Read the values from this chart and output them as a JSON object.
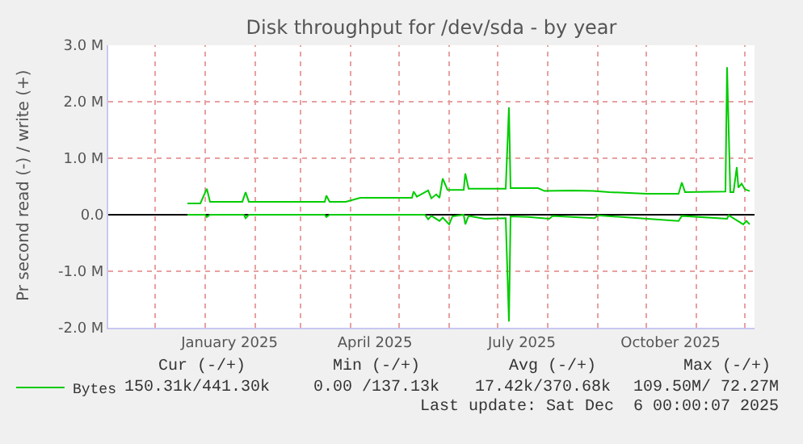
{
  "chart_data": {
    "type": "line",
    "title": "Disk throughput for /dev/sda - by year",
    "ylabel": "Pr second read (-) / write (+)",
    "xlim": [
      "2024-11-02",
      "2025-12-07"
    ],
    "xticks": [
      {
        "value": "2024-12-01",
        "label": null
      },
      {
        "value": "2025-01-01",
        "label": null
      },
      {
        "value": "2025-01-16",
        "label": "January 2025"
      },
      {
        "value": "2025-02-01",
        "label": null
      },
      {
        "value": "2025-03-01",
        "label": null
      },
      {
        "value": "2025-04-01",
        "label": null
      },
      {
        "value": "2025-04-16",
        "label": "April 2025"
      },
      {
        "value": "2025-05-01",
        "label": null
      },
      {
        "value": "2025-06-01",
        "label": null
      },
      {
        "value": "2025-07-01",
        "label": null
      },
      {
        "value": "2025-07-16",
        "label": "July 2025"
      },
      {
        "value": "2025-08-01",
        "label": null
      },
      {
        "value": "2025-09-01",
        "label": null
      },
      {
        "value": "2025-10-01",
        "label": null
      },
      {
        "value": "2025-10-16",
        "label": "October 2025"
      },
      {
        "value": "2025-11-01",
        "label": null
      },
      {
        "value": "2025-12-01",
        "label": null
      }
    ],
    "ylim": [
      -2000000,
      3000000
    ],
    "yticks": [
      {
        "value": -2000000,
        "label": "-2.0 M"
      },
      {
        "value": -1000000,
        "label": "-1.0 M"
      },
      {
        "value": 0,
        "label": "0.0"
      },
      {
        "value": 1000000,
        "label": "1.0 M"
      },
      {
        "value": 2000000,
        "label": "2.0 M"
      },
      {
        "value": 3000000,
        "label": "3.0 M"
      }
    ],
    "grid": true,
    "legend": "bottom left",
    "series": [
      {
        "name": "Bytes",
        "color": "#00cc00",
        "x": [
          "2024-12-21",
          "2024-12-29",
          "2025-01-02",
          "2025-01-04",
          "2025-01-24",
          "2025-01-26",
          "2025-01-28",
          "2025-03-16",
          "2025-03-17",
          "2025-03-19",
          "2025-03-29",
          "2025-04-07",
          "2025-05-09",
          "2025-05-10",
          "2025-05-12",
          "2025-05-19",
          "2025-05-21",
          "2025-05-24",
          "2025-05-26",
          "2025-05-28",
          "2025-05-31",
          "2025-06-10",
          "2025-06-11",
          "2025-06-13",
          "2025-07-06",
          "2025-07-08",
          "2025-07-09",
          "2025-07-26",
          "2025-07-30",
          "2025-08-16",
          "2025-08-29",
          "2025-09-08",
          "2025-10-01",
          "2025-10-21",
          "2025-10-23",
          "2025-10-25",
          "2025-11-19",
          "2025-11-20",
          "2025-11-22",
          "2025-11-24",
          "2025-11-26",
          "2025-11-27",
          "2025-11-29",
          "2025-12-01",
          "2025-12-04"
        ],
        "values": [
          200000,
          200000,
          460000,
          230000,
          230000,
          400000,
          230000,
          230000,
          340000,
          230000,
          230000,
          300000,
          300000,
          410000,
          320000,
          430000,
          290000,
          360000,
          300000,
          640000,
          440000,
          440000,
          730000,
          460000,
          460000,
          1900000,
          470000,
          470000,
          420000,
          430000,
          420000,
          400000,
          370000,
          370000,
          570000,
          400000,
          410000,
          2610000,
          400000,
          400000,
          840000,
          480000,
          550000,
          450000,
          420000
        ]
      },
      {
        "color": "#00cc00",
        "x": [
          "2024-12-21",
          "2025-01-01",
          "2025-01-02",
          "2025-01-04",
          "2025-01-25",
          "2025-01-26",
          "2025-01-28",
          "2025-03-16",
          "2025-03-17",
          "2025-03-19",
          "2025-05-17",
          "2025-05-19",
          "2025-05-21",
          "2025-05-26",
          "2025-05-28",
          "2025-06-01",
          "2025-06-03",
          "2025-06-10",
          "2025-06-11",
          "2025-06-13",
          "2025-06-23",
          "2025-07-06",
          "2025-07-08",
          "2025-07-09",
          "2025-07-20",
          "2025-08-02",
          "2025-08-04",
          "2025-08-30",
          "2025-09-01",
          "2025-10-21",
          "2025-10-23",
          "2025-11-20",
          "2025-11-21",
          "2025-11-30",
          "2025-12-02",
          "2025-12-04"
        ],
        "values": [
          0,
          0,
          -40000,
          0,
          0,
          -60000,
          0,
          0,
          -40000,
          0,
          0,
          -80000,
          -20000,
          -110000,
          -50000,
          -170000,
          -30000,
          0,
          -170000,
          -20000,
          -70000,
          -60000,
          -1890000,
          -30000,
          -40000,
          -70000,
          -20000,
          -60000,
          -10000,
          -110000,
          -20000,
          -70000,
          -10000,
          -170000,
          -110000,
          -170000
        ]
      }
    ],
    "annotations": [
      "Cur (-/+)",
      "Min (-/+)",
      "Avg (-/+)",
      "Max (-/+)",
      "150.31k/441.30k",
      "0.00 /137.13k",
      "17.42k/370.68k",
      "109.50M/ 72.27M",
      "Last update: Sat Dec  6 00:00:07 2025"
    ]
  }
}
